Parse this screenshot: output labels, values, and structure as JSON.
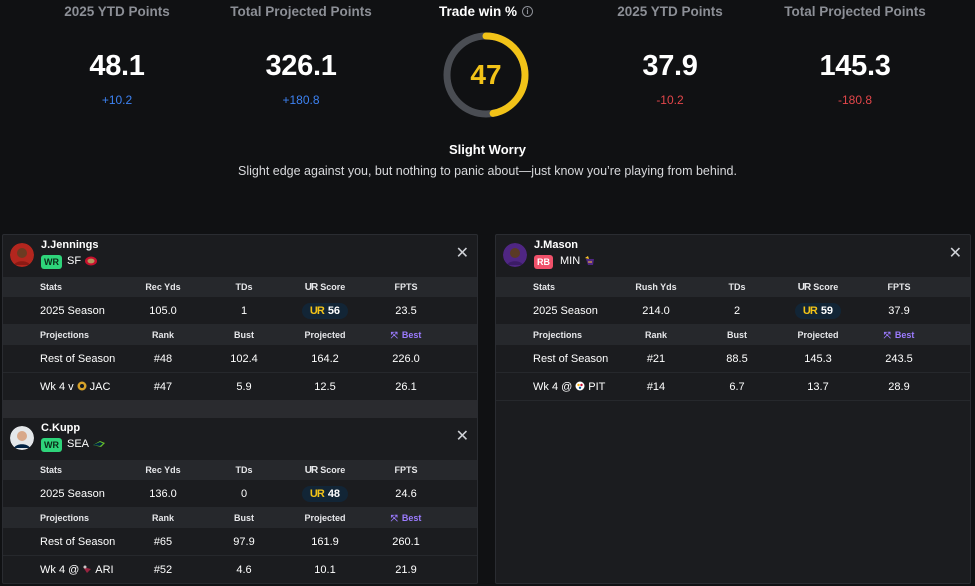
{
  "summary": {
    "left": [
      {
        "label": "2025 YTD Points",
        "value": "48.1",
        "delta": "+10.2"
      },
      {
        "label": "Total Projected Points",
        "value": "326.1",
        "delta": "+180.8"
      }
    ],
    "right": [
      {
        "label": "2025 YTD Points",
        "value": "37.9",
        "delta": "-10.2"
      },
      {
        "label": "Total Projected Points",
        "value": "145.3",
        "delta": "-180.8"
      }
    ],
    "trade": {
      "label": "Trade win %",
      "value": "47",
      "percent": 47
    },
    "verdict": {
      "title": "Slight Worry",
      "description": "Slight edge against you, but nothing to panic about—just know you’re playing from behind."
    }
  },
  "columns": {
    "stats": "Stats",
    "tds": "TDs",
    "ur_score": "Score",
    "ur_mark": "UR",
    "fpts": "FPTS",
    "projections": "Projections",
    "rank": "Rank",
    "bust": "Bust",
    "projected": "Projected",
    "best": "Best"
  },
  "players": {
    "jennings": {
      "name": "J.Jennings",
      "position": "WR",
      "team": "SF",
      "yards_label": "Rec Yds",
      "season": {
        "label": "2025 Season",
        "yds": "105.0",
        "tds": "1",
        "score": "56",
        "fpts": "23.5"
      },
      "ros": {
        "label": "Rest of Season",
        "rank": "#48",
        "bust": "102.4",
        "projected": "164.2",
        "best": "226.0"
      },
      "week": {
        "label": "Wk 4 v",
        "opp": "JAC",
        "rank": "#47",
        "bust": "5.9",
        "projected": "12.5",
        "best": "26.1"
      }
    },
    "kupp": {
      "name": "C.Kupp",
      "position": "WR",
      "team": "SEA",
      "yards_label": "Rec Yds",
      "season": {
        "label": "2025 Season",
        "yds": "136.0",
        "tds": "0",
        "score": "48",
        "fpts": "24.6"
      },
      "ros": {
        "label": "Rest of Season",
        "rank": "#65",
        "bust": "97.9",
        "projected": "161.9",
        "best": "260.1"
      },
      "week": {
        "label": "Wk 4 @",
        "opp": "ARI",
        "rank": "#52",
        "bust": "4.6",
        "projected": "10.1",
        "best": "21.9"
      }
    },
    "mason": {
      "name": "J.Mason",
      "position": "RB",
      "team": "MIN",
      "yards_label": "Rush Yds",
      "season": {
        "label": "2025 Season",
        "yds": "214.0",
        "tds": "2",
        "score": "59",
        "fpts": "37.9"
      },
      "ros": {
        "label": "Rest of Season",
        "rank": "#21",
        "bust": "88.5",
        "projected": "145.3",
        "best": "243.5"
      },
      "week": {
        "label": "Wk 4 @",
        "opp": "PIT",
        "rank": "#14",
        "bust": "6.7",
        "projected": "13.7",
        "best": "28.9"
      }
    }
  },
  "colors": {
    "accent": "#f2c318",
    "positive": "#3d82f2",
    "negative": "#e2464a",
    "wr": "#2ed47a",
    "rb": "#f0516a"
  }
}
